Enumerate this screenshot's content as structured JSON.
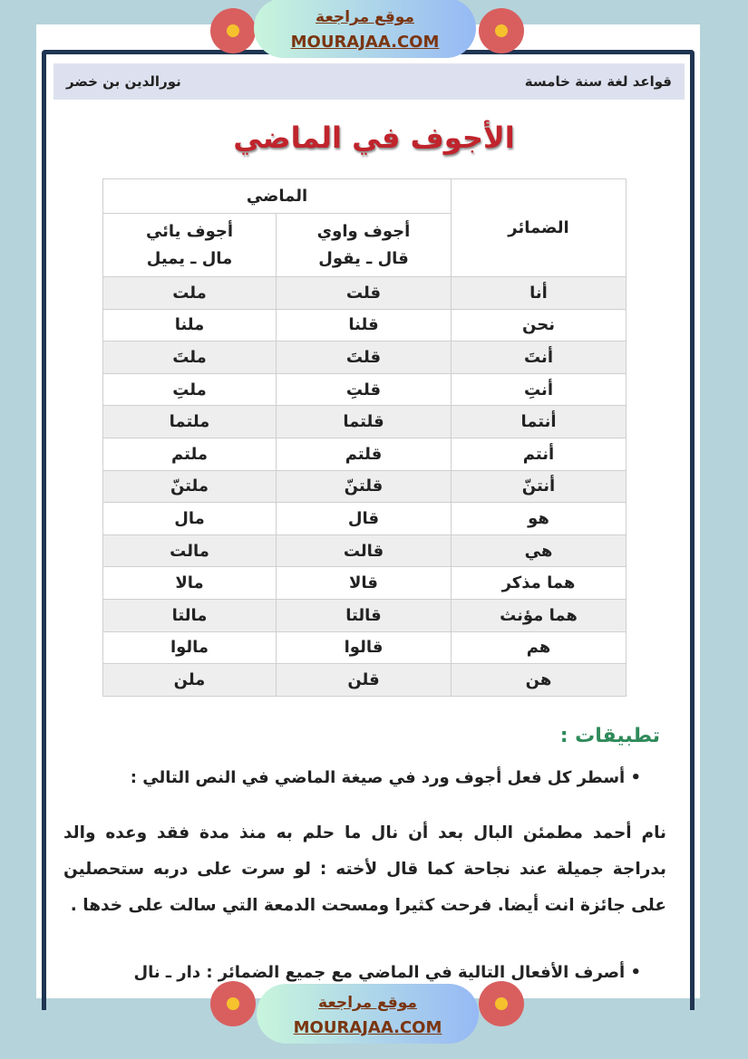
{
  "banner": {
    "line1": "موقع مراجعة",
    "line2": "MOURAJAA.COM"
  },
  "header": {
    "subject": "قواعد لغة سنة خامسة",
    "author": "نورالدين بن خضر"
  },
  "title": "الأجوف في الماضي",
  "table": {
    "pronouns_header": "الضمائر",
    "past_header": "الماضي",
    "waw_header": "أجوف واوي",
    "waw_example": "قال ـ يقول",
    "ya_header": "أجوف يائي",
    "ya_example": "مال ـ يميل",
    "rows": [
      {
        "pronoun": "أنا",
        "waw": "قلت",
        "ya": "ملت"
      },
      {
        "pronoun": "نحن",
        "waw": "قلنا",
        "ya": "ملنا"
      },
      {
        "pronoun": "أنتَ",
        "waw": "قلتَ",
        "ya": "ملتَ"
      },
      {
        "pronoun": "أنتِ",
        "waw": "قلتِ",
        "ya": "ملتِ"
      },
      {
        "pronoun": "أنتما",
        "waw": "قلتما",
        "ya": "ملتما"
      },
      {
        "pronoun": "أنتم",
        "waw": "قلتم",
        "ya": "ملتم"
      },
      {
        "pronoun": "أنتنّ",
        "waw": "قلتنّ",
        "ya": "ملتنّ"
      },
      {
        "pronoun": "هو",
        "waw": "قال",
        "ya": "مال"
      },
      {
        "pronoun": "هي",
        "waw": "قالت",
        "ya": "مالت"
      },
      {
        "pronoun": "هما مذكر",
        "waw": "قالا",
        "ya": "مالا"
      },
      {
        "pronoun": "هما مؤنث",
        "waw": "قالتا",
        "ya": "مالتا"
      },
      {
        "pronoun": "هم",
        "waw": "قالوا",
        "ya": "مالوا"
      },
      {
        "pronoun": "هن",
        "waw": "قلن",
        "ya": "ملن"
      }
    ]
  },
  "exercises": {
    "heading": "تطبيقات :",
    "q1": "أسطر كل فعل أجوف ورد في صيغة الماضي في النص التالي :",
    "text": [
      "نام أحمد مطمئن البال بعد أن نال ما حلم به منذ مدة فقد وعده والد",
      "بدراجة جميلة عند نجاحة كما قال لأخته : لو سرت على دربه ستحصلين",
      "على جائزة انت أيضا. فرحت كثيرا ومسحت الدمعة التي سالت على خدها ."
    ],
    "q2": "أصرف الأفعال التالية في الماضي مع جميع الضمائر : دار ـ نال"
  }
}
